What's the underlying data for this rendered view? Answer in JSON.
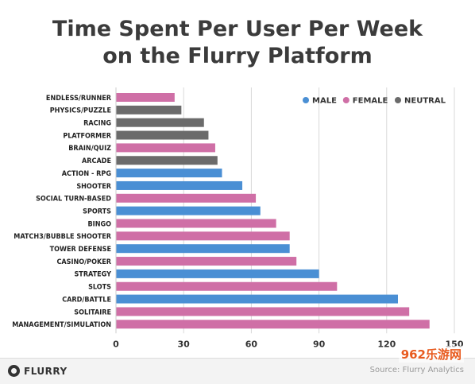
{
  "chart_data": {
    "type": "bar",
    "orientation": "horizontal",
    "title": "Time Spent Per User Per Week\non the Flurry Platform",
    "categories": [
      "ENDLESS/RUNNER",
      "PHYSICS/PUZZLE",
      "RACING",
      "PLATFORMER",
      "BRAIN/QUIZ",
      "ARCADE",
      "ACTION - RPG",
      "SHOOTER",
      "SOCIAL TURN-BASED",
      "SPORTS",
      "BINGO",
      "MATCH3/BUBBLE SHOOTER",
      "TOWER DEFENSE",
      "CASINO/POKER",
      "STRATEGY",
      "SLOTS",
      "CARD/BATTLE",
      "SOLITAIRE",
      "MANAGEMENT/SIMULATION"
    ],
    "values": [
      26,
      29,
      39,
      41,
      44,
      45,
      47,
      56,
      62,
      64,
      71,
      77,
      77,
      80,
      90,
      98,
      125,
      130,
      139
    ],
    "groups": [
      "FEMALE",
      "NEUTRAL",
      "NEUTRAL",
      "NEUTRAL",
      "FEMALE",
      "NEUTRAL",
      "MALE",
      "MALE",
      "FEMALE",
      "MALE",
      "FEMALE",
      "FEMALE",
      "MALE",
      "FEMALE",
      "MALE",
      "FEMALE",
      "MALE",
      "FEMALE",
      "FEMALE"
    ],
    "legend": [
      {
        "name": "MALE",
        "color": "#4a8fd4"
      },
      {
        "name": "FEMALE",
        "color": "#cf6fa6"
      },
      {
        "name": "NEUTRAL",
        "color": "#6b6b6b"
      }
    ],
    "legend_position": "top-right",
    "xticks": [
      0,
      30,
      60,
      90,
      120,
      150
    ],
    "xlim": [
      0,
      150
    ],
    "grid": "vertical",
    "xlabel": "",
    "ylabel": ""
  },
  "footer": {
    "logo_text": "FLURRY",
    "source": "Source: Flurry Analytics",
    "watermark": "962乐游网"
  }
}
